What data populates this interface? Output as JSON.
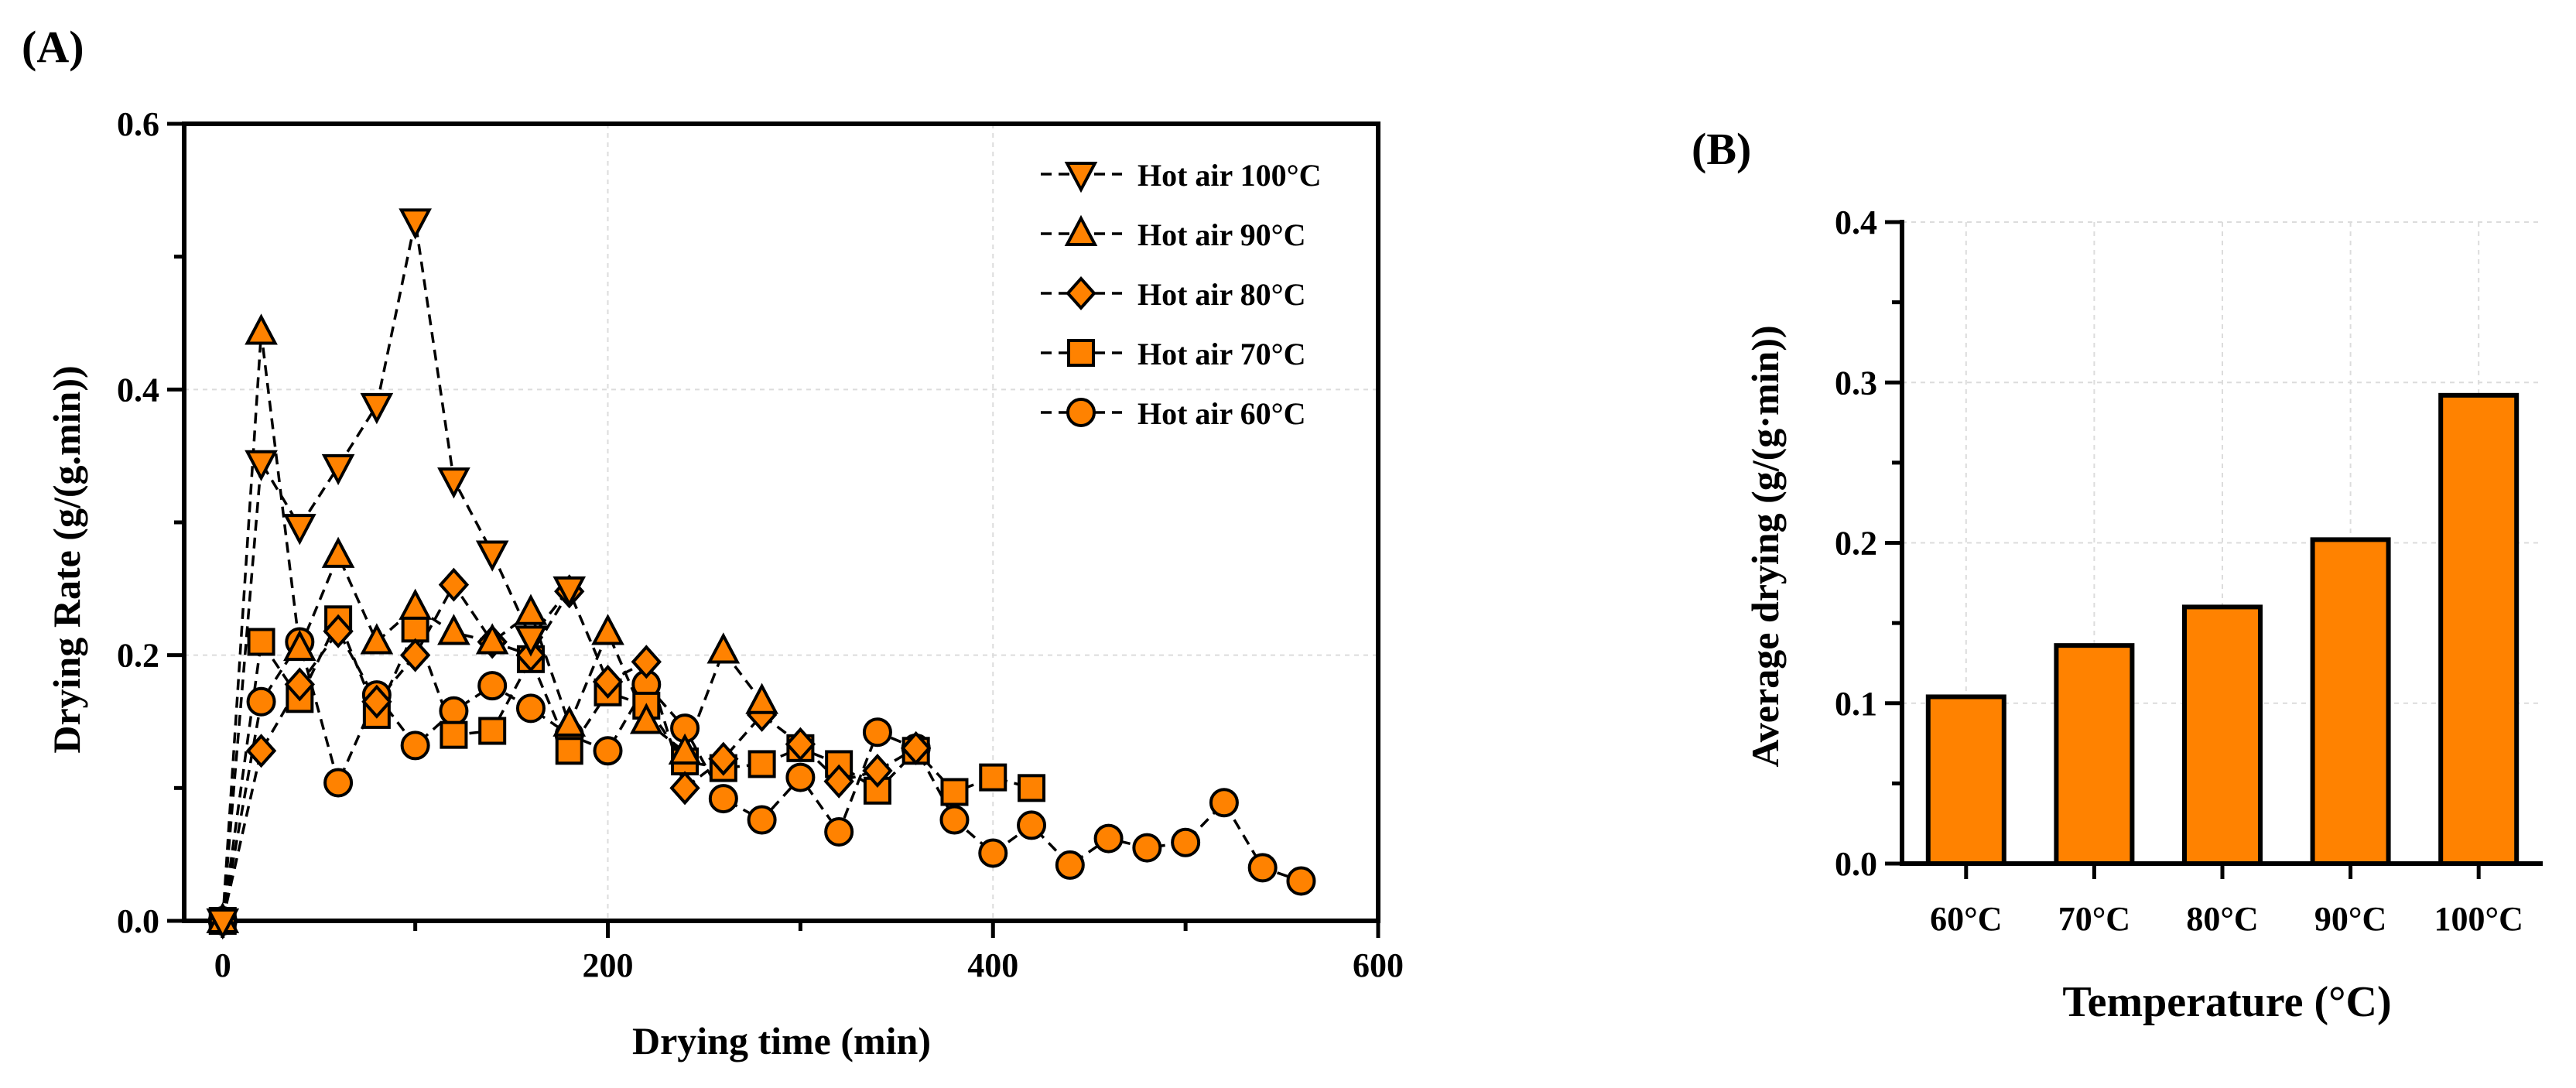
{
  "colors": {
    "orange": "#ff8200",
    "black": "#000000",
    "grid": "#dcdcdc"
  },
  "chart_data": [
    {
      "type": "line",
      "panel_label": "(A)",
      "xlabel": "Drying time (min)",
      "ylabel": "Drying Rate (g/(g.min))",
      "xlim": [
        -20,
        600
      ],
      "ylim": [
        0,
        0.6
      ],
      "xticks": [
        0,
        200,
        400,
        600
      ],
      "xtick_labels": [
        "0",
        "200",
        "400",
        "600"
      ],
      "yticks": [
        0,
        0.2,
        0.4,
        0.6
      ],
      "ytick_labels": [
        "0.0",
        "0.2",
        "0.4",
        "0.6"
      ],
      "grid": true,
      "legend_position": "top-right",
      "series": [
        {
          "name": "Hot air 100°C",
          "marker": "triangle-down",
          "x": [
            0,
            20,
            40,
            60,
            80,
            100,
            120,
            140,
            160,
            180
          ],
          "y": [
            0,
            0.345,
            0.297,
            0.342,
            0.388,
            0.527,
            0.332,
            0.277,
            0.213,
            0.25
          ]
        },
        {
          "name": "Hot air 90°C",
          "marker": "triangle-up",
          "x": [
            0,
            20,
            40,
            60,
            80,
            100,
            120,
            140,
            160,
            180,
            200,
            220,
            240,
            260,
            280
          ],
          "y": [
            0,
            0.443,
            0.205,
            0.275,
            0.21,
            0.236,
            0.217,
            0.21,
            0.232,
            0.148,
            0.217,
            0.15,
            0.127,
            0.203,
            0.165
          ]
        },
        {
          "name": "Hot air 80°C",
          "marker": "diamond",
          "x": [
            0,
            20,
            40,
            60,
            80,
            100,
            120,
            140,
            160,
            180,
            200,
            220,
            240,
            260,
            280,
            300,
            320,
            340,
            360
          ],
          "y": [
            0,
            0.128,
            0.178,
            0.218,
            0.165,
            0.2,
            0.253,
            0.21,
            0.2,
            0.248,
            0.18,
            0.195,
            0.1,
            0.122,
            0.155,
            0.133,
            0.105,
            0.113,
            0.13
          ]
        },
        {
          "name": "Hot air 70°C",
          "marker": "square",
          "x": [
            0,
            20,
            40,
            60,
            80,
            100,
            120,
            140,
            160,
            180,
            200,
            220,
            240,
            260,
            280,
            300,
            320,
            340,
            360,
            380,
            400,
            420
          ],
          "y": [
            0,
            0.21,
            0.167,
            0.227,
            0.155,
            0.22,
            0.14,
            0.143,
            0.197,
            0.128,
            0.172,
            0.162,
            0.12,
            0.115,
            0.118,
            0.13,
            0.118,
            0.098,
            0.128,
            0.097,
            0.108,
            0.1
          ]
        },
        {
          "name": "Hot air 60°C",
          "marker": "circle",
          "x": [
            0,
            20,
            40,
            60,
            80,
            100,
            120,
            140,
            160,
            180,
            200,
            220,
            240,
            260,
            280,
            300,
            320,
            340,
            360,
            380,
            400,
            420,
            440,
            460,
            480,
            500,
            520,
            540,
            560
          ],
          "y": [
            0,
            0.165,
            0.21,
            0.104,
            0.17,
            0.132,
            0.158,
            0.177,
            0.16,
            0.14,
            0.128,
            0.178,
            0.145,
            0.092,
            0.076,
            0.108,
            0.067,
            0.142,
            0.13,
            0.076,
            0.051,
            0.072,
            0.042,
            0.062,
            0.055,
            0.059,
            0.089,
            0.04,
            0.03
          ]
        }
      ]
    },
    {
      "type": "bar",
      "panel_label": "(B)",
      "xlabel": "Temperature (°C)",
      "ylabel": "Average drying (g/(g·min))",
      "categories": [
        "60°C",
        "70°C",
        "80°C",
        "90°C",
        "100°C"
      ],
      "values": [
        0.104,
        0.136,
        0.16,
        0.202,
        0.292
      ],
      "ylim": [
        0,
        0.4
      ],
      "yticks": [
        0,
        0.1,
        0.2,
        0.3,
        0.4
      ],
      "ytick_labels": [
        "0.0",
        "0.1",
        "0.2",
        "0.3",
        "0.4"
      ],
      "grid": true
    }
  ]
}
